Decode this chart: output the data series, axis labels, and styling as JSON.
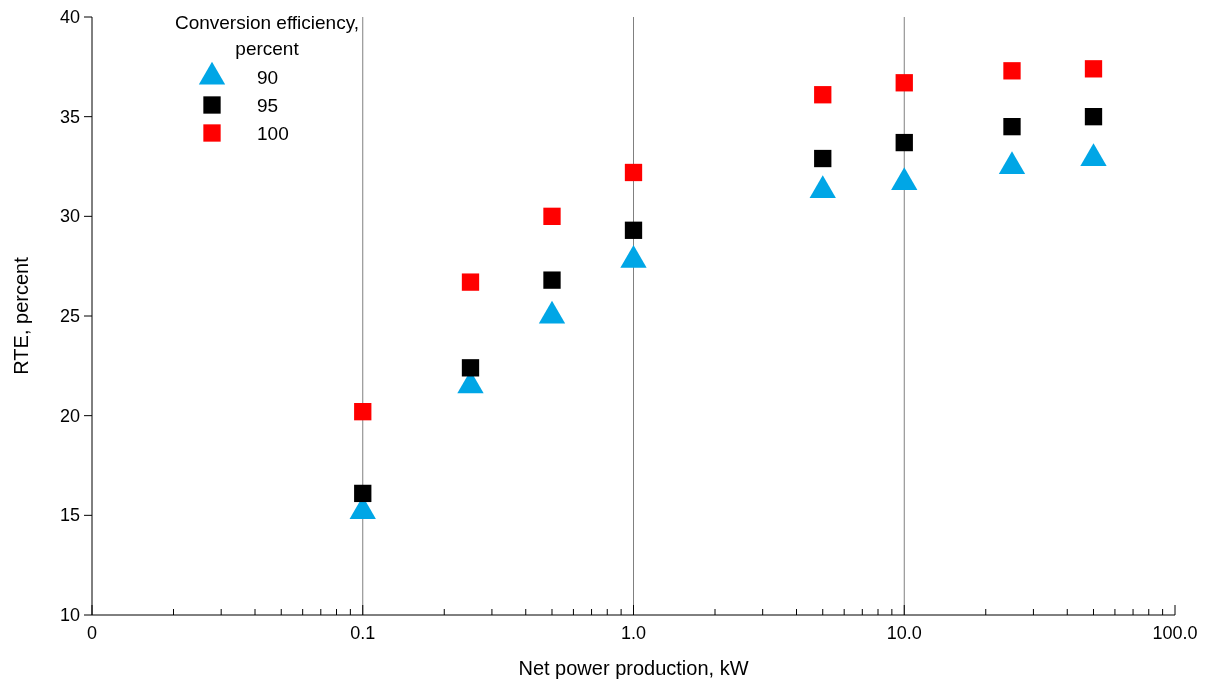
{
  "chart_data": {
    "type": "scatter",
    "xlabel": "Net power production, kW",
    "ylabel": "RTE, percent",
    "legend_title": "Conversion efficiency, percent",
    "legend": "top left",
    "grid": false,
    "log": "x",
    "x": [
      0.1,
      0.25,
      0.5,
      1,
      5,
      10,
      25,
      50
    ],
    "series": [
      {
        "name": "90",
        "color": "#00a6e6",
        "marker": "triangle",
        "values": [
          15.2,
          21.5,
          25.0,
          27.8,
          31.3,
          31.7,
          32.5,
          32.9
        ]
      },
      {
        "name": "95",
        "color": "#000000",
        "marker": "square",
        "values": [
          16.1,
          22.4,
          26.8,
          29.3,
          32.9,
          33.7,
          34.5,
          35.0
        ]
      },
      {
        "name": "100",
        "color": "#ff0000",
        "marker": "square",
        "values": [
          20.2,
          26.7,
          30.0,
          32.2,
          36.1,
          36.7,
          37.3,
          37.4
        ]
      }
    ],
    "xlim": [
      0.01,
      100
    ],
    "xticks": [
      {
        "value": 0.01,
        "label": "0"
      },
      {
        "value": 0.02,
        "label": null
      },
      {
        "value": 0.03,
        "label": null
      },
      {
        "value": 0.04,
        "label": null
      },
      {
        "value": 0.05,
        "label": null
      },
      {
        "value": 0.06,
        "label": null
      },
      {
        "value": 0.07,
        "label": null
      },
      {
        "value": 0.08,
        "label": null
      },
      {
        "value": 0.09,
        "label": null
      },
      {
        "value": 0.1,
        "label": "0.1"
      },
      {
        "value": 0.2,
        "label": null
      },
      {
        "value": 0.3,
        "label": null
      },
      {
        "value": 0.4,
        "label": null
      },
      {
        "value": 0.5,
        "label": null
      },
      {
        "value": 0.6,
        "label": null
      },
      {
        "value": 0.7,
        "label": null
      },
      {
        "value": 0.8,
        "label": null
      },
      {
        "value": 0.9,
        "label": null
      },
      {
        "value": 1,
        "label": "1.0"
      },
      {
        "value": 2,
        "label": null
      },
      {
        "value": 3,
        "label": null
      },
      {
        "value": 4,
        "label": null
      },
      {
        "value": 5,
        "label": null
      },
      {
        "value": 6,
        "label": null
      },
      {
        "value": 7,
        "label": null
      },
      {
        "value": 8,
        "label": null
      },
      {
        "value": 9,
        "label": null
      },
      {
        "value": 10,
        "label": "10.0"
      },
      {
        "value": 20,
        "label": null
      },
      {
        "value": 30,
        "label": null
      },
      {
        "value": 40,
        "label": null
      },
      {
        "value": 50,
        "label": null
      },
      {
        "value": 60,
        "label": null
      },
      {
        "value": 70,
        "label": null
      },
      {
        "value": 80,
        "label": null
      },
      {
        "value": 90,
        "label": null
      },
      {
        "value": 100,
        "label": "100.0"
      }
    ],
    "ylim": [
      10,
      40
    ],
    "yticks": [
      10,
      15,
      20,
      25,
      30,
      35,
      40
    ],
    "ref_lines": [
      {
        "axis": "x",
        "value": 0.1,
        "color": "#808080"
      },
      {
        "axis": "x",
        "value": 1,
        "color": "#808080"
      },
      {
        "axis": "x",
        "value": 10,
        "color": "#808080"
      }
    ]
  }
}
